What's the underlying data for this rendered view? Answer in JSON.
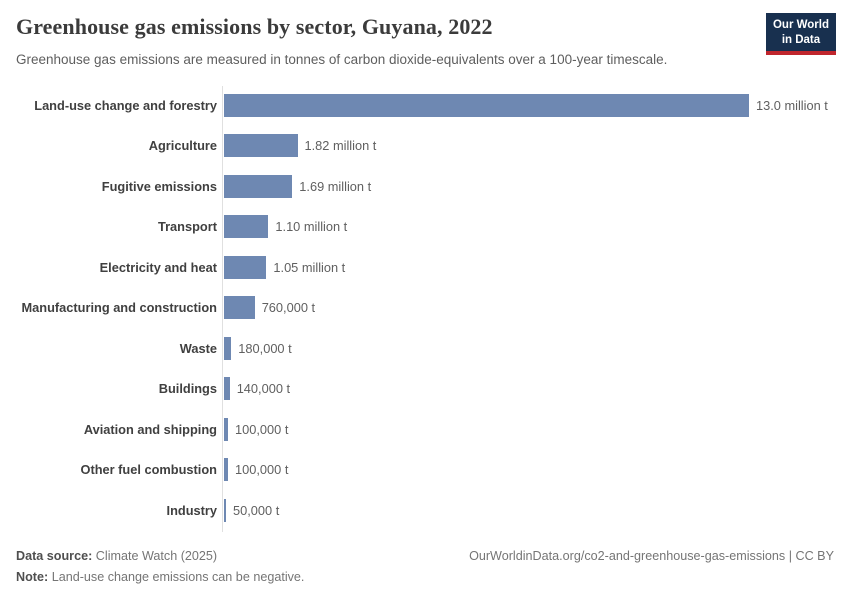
{
  "header": {
    "title": "Greenhouse gas emissions by sector, Guyana, 2022",
    "subtitle": "Greenhouse gas emissions are measured in tonnes of carbon dioxide-equivalents over a 100-year timescale.",
    "logo": {
      "line1": "Our World",
      "line2": "in Data",
      "bg_color": "#18304f",
      "accent_color": "#c0262d"
    }
  },
  "chart_data": {
    "type": "bar",
    "orientation": "horizontal",
    "title": "Greenhouse gas emissions by sector, Guyana, 2022",
    "unit": "tonnes of carbon dioxide-equivalents",
    "categories": [
      "Land-use change and forestry",
      "Agriculture",
      "Fugitive emissions",
      "Transport",
      "Electricity and heat",
      "Manufacturing and construction",
      "Waste",
      "Buildings",
      "Aviation and shipping",
      "Other fuel combustion",
      "Industry"
    ],
    "values_tonnes": [
      13000000,
      1820000,
      1690000,
      1100000,
      1050000,
      760000,
      180000,
      140000,
      100000,
      100000,
      50000
    ],
    "value_labels": [
      "13.0 million t",
      "1.82 million t",
      "1.69 million t",
      "1.10 million t",
      "1.05 million t",
      "760,000 t",
      "180,000 t",
      "140,000 t",
      "100,000 t",
      "100,000 t",
      "50,000 t"
    ],
    "xlim": [
      0,
      13000000
    ],
    "grid": false,
    "legend": "none",
    "bar_color": "#6e88b2",
    "axis_color": "#e0e0e0"
  },
  "footer": {
    "source_label": "Data source:",
    "source_value": "Climate Watch (2025)",
    "note_label": "Note:",
    "note_value": "Land-use change emissions can be negative.",
    "link": "OurWorldinData.org/co2-and-greenhouse-gas-emissions | CC BY"
  }
}
